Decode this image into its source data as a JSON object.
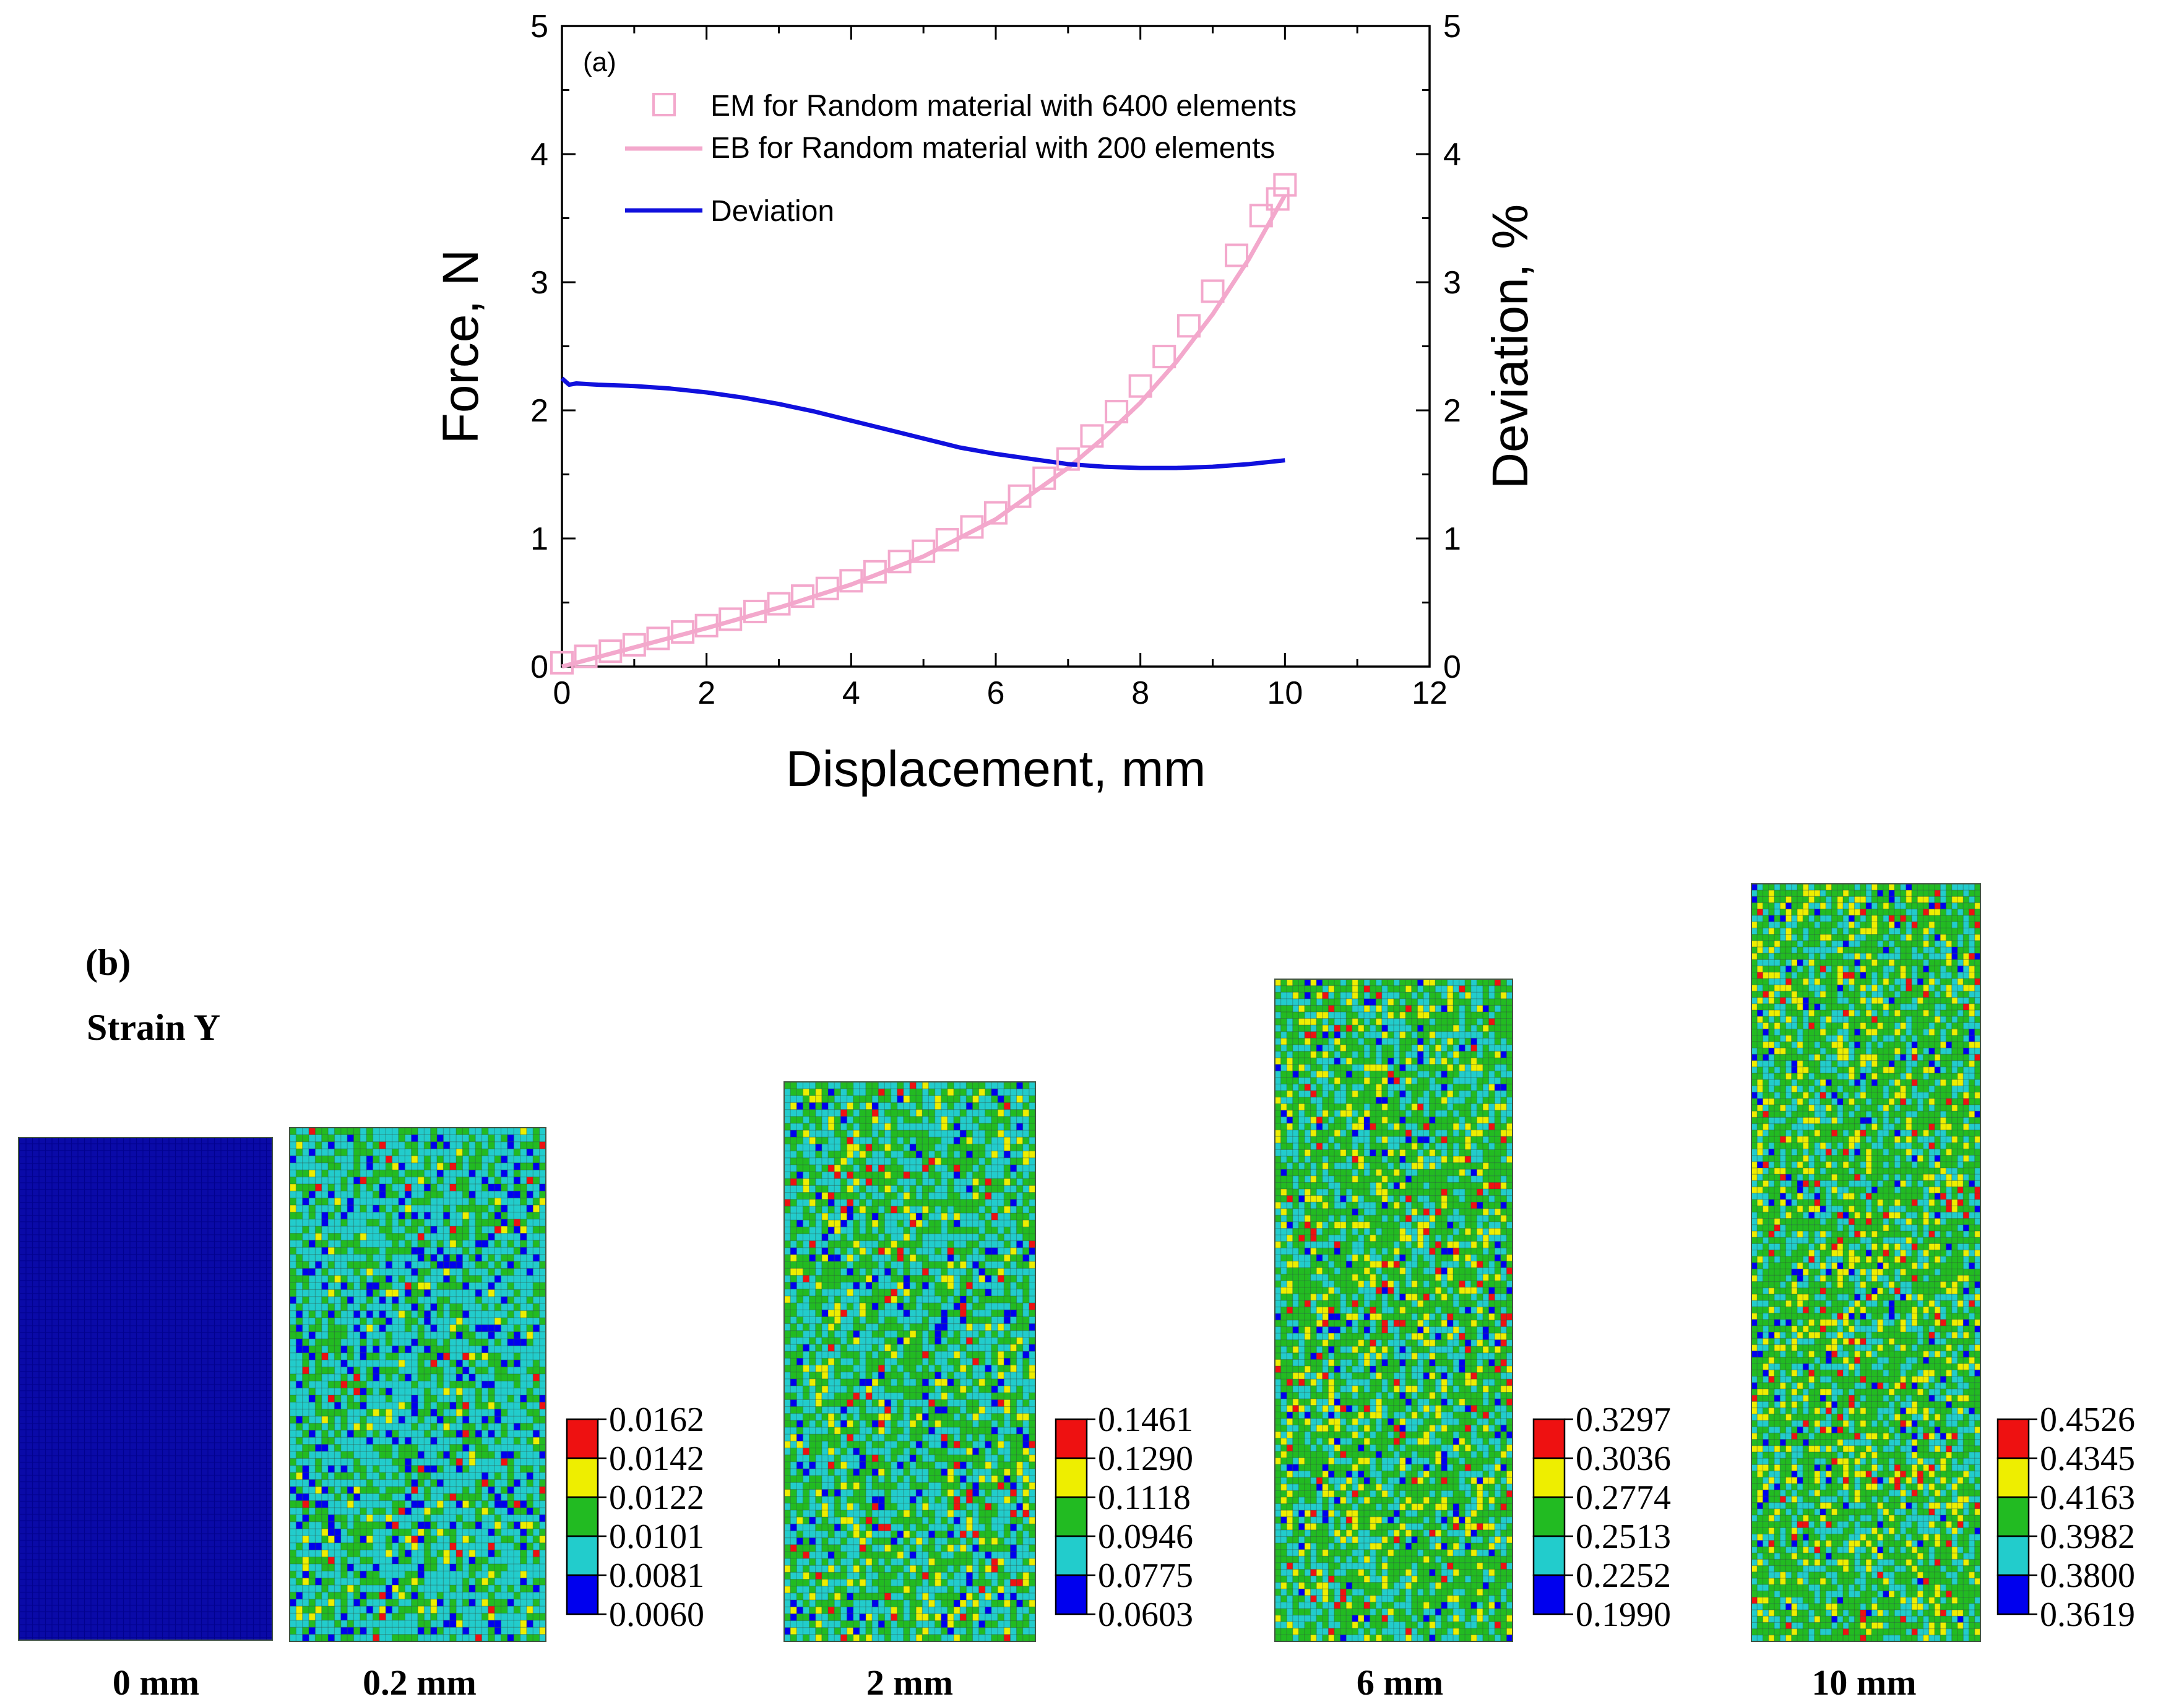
{
  "chart_data": [
    {
      "type": "line",
      "panel_label": "(a)",
      "xlabel": "Displacement, mm",
      "ylabel": "Force, N",
      "y2label": "Deviation, %",
      "xlim": [
        0,
        12
      ],
      "ylim": [
        0,
        5
      ],
      "y2lim": [
        0,
        5
      ],
      "xticks": [
        0,
        2,
        4,
        6,
        8,
        10,
        12
      ],
      "yticks": [
        0,
        1,
        2,
        3,
        4,
        5
      ],
      "y2ticks": [
        0,
        1,
        2,
        3,
        4,
        5
      ],
      "grid": false,
      "legend_position": "top-left",
      "colors": {
        "em": "#f3a8cc",
        "eb": "#f3a8cc",
        "deviation": "#1010dd"
      },
      "series": [
        {
          "name": "EM for Random material with 6400 elements",
          "marker": "open-square",
          "axis": "left",
          "x": [
            0.0,
            0.33,
            0.67,
            1.0,
            1.33,
            1.67,
            2.0,
            2.33,
            2.67,
            3.0,
            3.33,
            3.67,
            4.0,
            4.33,
            4.67,
            5.0,
            5.33,
            5.67,
            6.0,
            6.33,
            6.67,
            7.0,
            7.33,
            7.67,
            8.0,
            8.33,
            8.67,
            9.0,
            9.33,
            9.67,
            9.9,
            10.0
          ],
          "y": [
            0.03,
            0.08,
            0.12,
            0.17,
            0.22,
            0.27,
            0.32,
            0.37,
            0.43,
            0.49,
            0.55,
            0.61,
            0.67,
            0.74,
            0.82,
            0.9,
            0.99,
            1.09,
            1.2,
            1.33,
            1.47,
            1.62,
            1.8,
            1.99,
            2.19,
            2.42,
            2.66,
            2.93,
            3.21,
            3.52,
            3.65,
            3.76
          ]
        },
        {
          "name": "EB for Random material with 200 elements",
          "marker": "none",
          "axis": "left",
          "x": [
            0,
            1,
            2,
            3,
            4,
            5,
            6,
            7,
            7.5,
            8,
            8.5,
            9,
            9.5,
            10
          ],
          "y": [
            0.0,
            0.15,
            0.3,
            0.46,
            0.64,
            0.86,
            1.15,
            1.55,
            1.79,
            2.06,
            2.38,
            2.75,
            3.18,
            3.68
          ]
        },
        {
          "name": "Deviation",
          "marker": "none",
          "axis": "right",
          "x": [
            0.0,
            0.1,
            0.2,
            0.5,
            1.0,
            1.5,
            2.0,
            2.5,
            3.0,
            3.5,
            4.0,
            4.5,
            5.0,
            5.5,
            6.0,
            6.5,
            7.0,
            7.5,
            8.0,
            8.5,
            9.0,
            9.5,
            10.0
          ],
          "y": [
            2.25,
            2.2,
            2.21,
            2.2,
            2.19,
            2.17,
            2.14,
            2.1,
            2.05,
            1.99,
            1.92,
            1.85,
            1.78,
            1.71,
            1.66,
            1.62,
            1.58,
            1.56,
            1.55,
            1.55,
            1.56,
            1.58,
            1.61
          ]
        }
      ]
    },
    {
      "type": "heatmap",
      "panel_label": "(b)",
      "title": "Strain Y",
      "palette": [
        "#0000ee",
        "#22cccc",
        "#22bb22",
        "#eeee00",
        "#ee1111"
      ],
      "panels": [
        {
          "label": "0 mm",
          "uniform": true,
          "colorbar": []
        },
        {
          "label": "0.2 mm",
          "uniform": false,
          "colorbar": [
            "0.0162",
            "0.0142",
            "0.0122",
            "0.0101",
            "0.0081",
            "0.0060"
          ]
        },
        {
          "label": "2 mm",
          "uniform": false,
          "colorbar": [
            "0.1461",
            "0.1290",
            "0.1118",
            "0.0946",
            "0.0775",
            "0.0603"
          ]
        },
        {
          "label": "6 mm",
          "uniform": false,
          "colorbar": [
            "0.3297",
            "0.3036",
            "0.2774",
            "0.2513",
            "0.2252",
            "0.1990"
          ]
        },
        {
          "label": "10 mm",
          "uniform": false,
          "colorbar": [
            "0.4526",
            "0.4345",
            "0.4163",
            "0.3982",
            "0.3800",
            "0.3619"
          ]
        }
      ]
    }
  ]
}
